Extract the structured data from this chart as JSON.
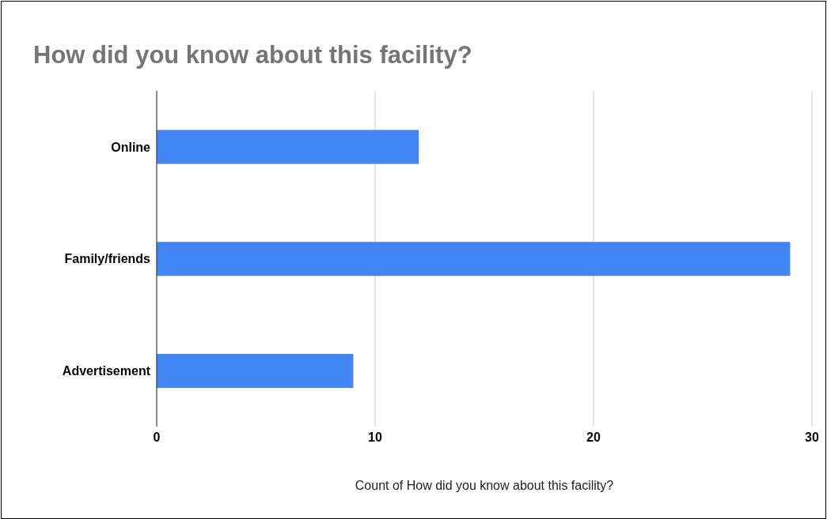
{
  "chart_data": {
    "type": "bar",
    "orientation": "horizontal",
    "title": "How did you know about this facility?",
    "xlabel": "Count of How did you know about this facility?",
    "categories": [
      "Online",
      "Family/friends",
      "Advertisement"
    ],
    "values": [
      12,
      29,
      9
    ],
    "color": "#4285f4",
    "xlim": [
      0,
      30
    ],
    "xticks": [
      0,
      10,
      20,
      30
    ],
    "grid": "x"
  }
}
